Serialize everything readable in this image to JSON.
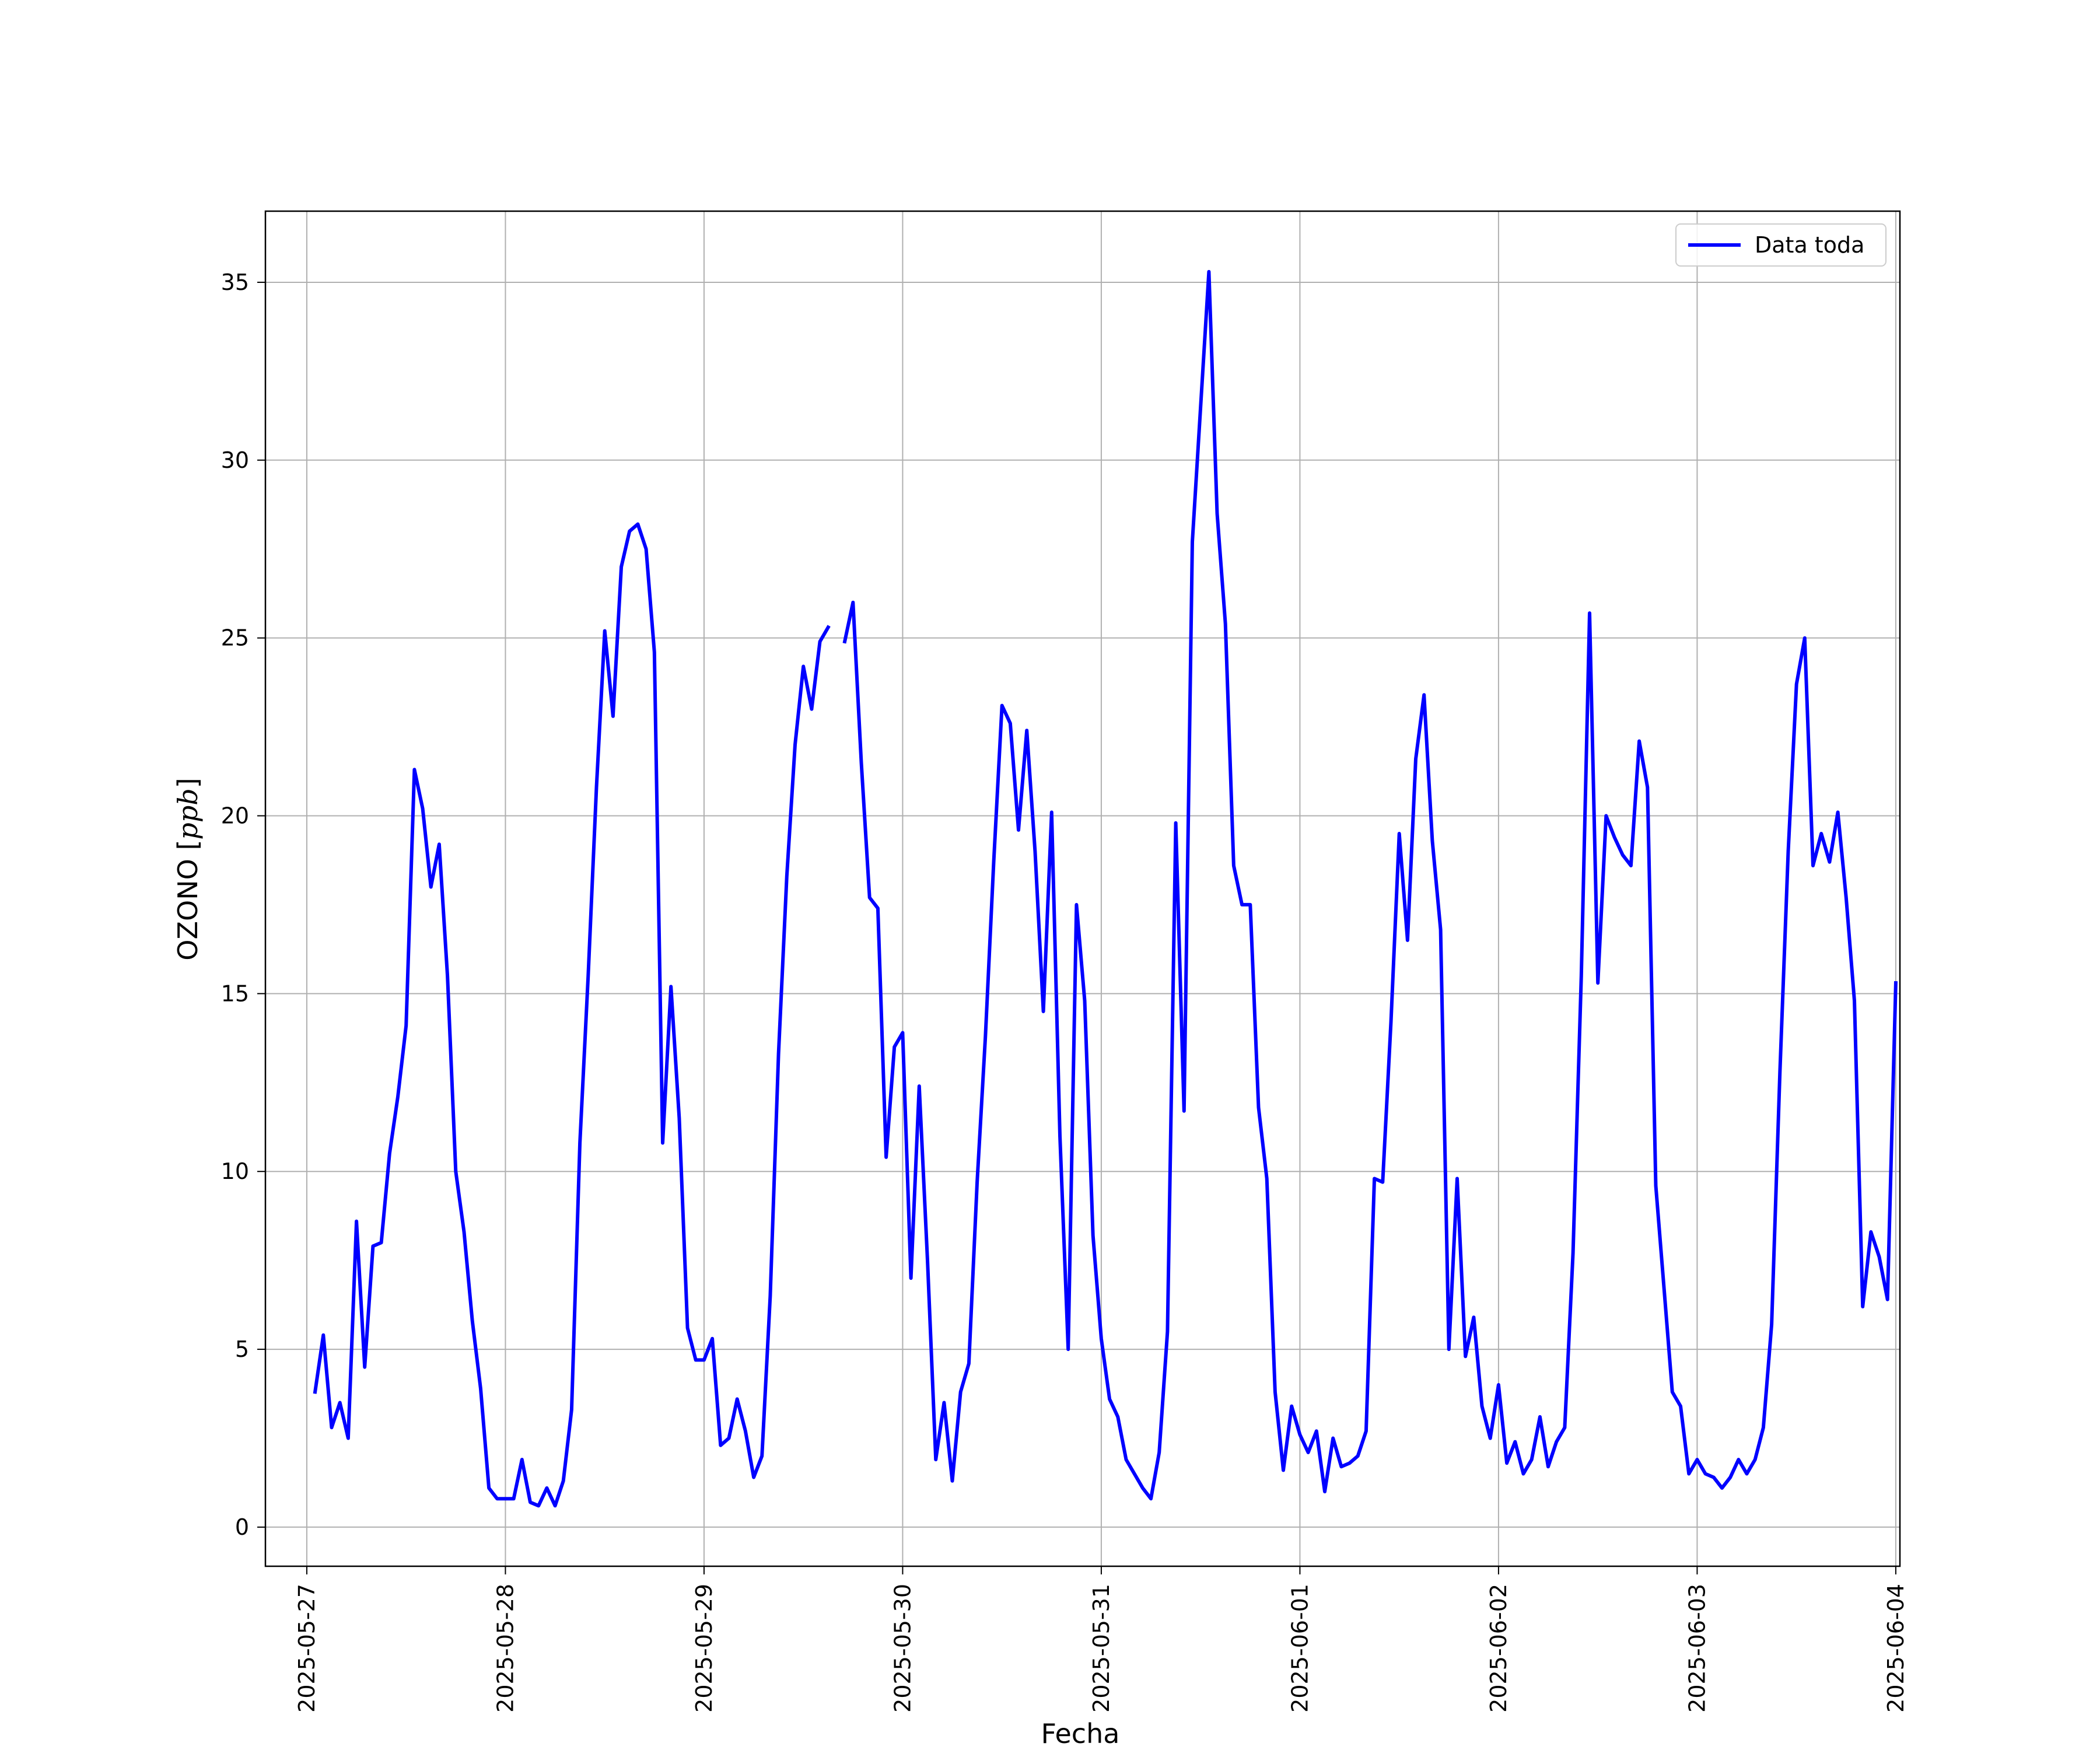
{
  "chart_data": {
    "type": "line",
    "title": "",
    "xlabel": "Fecha",
    "ylabel_prefix": "OZONO [",
    "ylabel_unit": "ppb",
    "ylabel_suffix": "]",
    "x_ticks": [
      "2025-05-27",
      "2025-05-28",
      "2025-05-29",
      "2025-05-30",
      "2025-05-31",
      "2025-06-01",
      "2025-06-02",
      "2025-06-03",
      "2025-06-04"
    ],
    "y_ticks": [
      "0",
      "5",
      "10",
      "15",
      "20",
      "25",
      "30",
      "35"
    ],
    "xlim": [
      "2025-05-26T19:00",
      "2025-06-04T00:30"
    ],
    "ylim": [
      -1.1,
      37.0
    ],
    "grid": true,
    "legend_position": "top-right",
    "series": [
      {
        "name": "Data toda",
        "color": "#0000ff",
        "points": [
          [
            "2025-05-27T01:00",
            3.8
          ],
          [
            "2025-05-27T02:00",
            5.4
          ],
          [
            "2025-05-27T03:00",
            2.8
          ],
          [
            "2025-05-27T04:00",
            3.5
          ],
          [
            "2025-05-27T05:00",
            2.5
          ],
          [
            "2025-05-27T06:00",
            8.6
          ],
          [
            "2025-05-27T07:00",
            4.5
          ],
          [
            "2025-05-27T08:00",
            7.9
          ],
          [
            "2025-05-27T09:00",
            8.0
          ],
          [
            "2025-05-27T10:00",
            10.5
          ],
          [
            "2025-05-27T11:00",
            12.1
          ],
          [
            "2025-05-27T12:00",
            14.1
          ],
          [
            "2025-05-27T13:00",
            21.3
          ],
          [
            "2025-05-27T14:00",
            20.2
          ],
          [
            "2025-05-27T15:00",
            18.0
          ],
          [
            "2025-05-27T16:00",
            19.2
          ],
          [
            "2025-05-27T17:00",
            15.5
          ],
          [
            "2025-05-27T18:00",
            10.0
          ],
          [
            "2025-05-27T19:00",
            8.3
          ],
          [
            "2025-05-27T20:00",
            5.8
          ],
          [
            "2025-05-27T21:00",
            3.9
          ],
          [
            "2025-05-27T22:00",
            1.1
          ],
          [
            "2025-05-27T23:00",
            0.8
          ],
          [
            "2025-05-28T00:00",
            0.8
          ],
          [
            "2025-05-28T01:00",
            0.8
          ],
          [
            "2025-05-28T02:00",
            1.9
          ],
          [
            "2025-05-28T03:00",
            0.7
          ],
          [
            "2025-05-28T04:00",
            0.6
          ],
          [
            "2025-05-28T05:00",
            1.1
          ],
          [
            "2025-05-28T06:00",
            0.6
          ],
          [
            "2025-05-28T07:00",
            1.3
          ],
          [
            "2025-05-28T08:00",
            3.3
          ],
          [
            "2025-05-28T09:00",
            10.8
          ],
          [
            "2025-05-28T10:00",
            15.5
          ],
          [
            "2025-05-28T11:00",
            20.8
          ],
          [
            "2025-05-28T12:00",
            25.2
          ],
          [
            "2025-05-28T13:00",
            22.8
          ],
          [
            "2025-05-28T14:00",
            27.0
          ],
          [
            "2025-05-28T15:00",
            28.0
          ],
          [
            "2025-05-28T16:00",
            28.2
          ],
          [
            "2025-05-28T17:00",
            27.5
          ],
          [
            "2025-05-28T18:00",
            24.6
          ],
          [
            "2025-05-28T19:00",
            10.8
          ],
          [
            "2025-05-28T20:00",
            15.2
          ],
          [
            "2025-05-28T21:00",
            11.5
          ],
          [
            "2025-05-28T22:00",
            5.6
          ],
          [
            "2025-05-28T23:00",
            4.7
          ],
          [
            "2025-05-29T00:00",
            4.7
          ],
          [
            "2025-05-29T01:00",
            5.3
          ],
          [
            "2025-05-29T02:00",
            2.3
          ],
          [
            "2025-05-29T03:00",
            2.5
          ],
          [
            "2025-05-29T04:00",
            3.6
          ],
          [
            "2025-05-29T05:00",
            2.7
          ],
          [
            "2025-05-29T06:00",
            1.4
          ],
          [
            "2025-05-29T07:00",
            2.0
          ],
          [
            "2025-05-29T08:00",
            6.5
          ],
          [
            "2025-05-29T09:00",
            13.3
          ],
          [
            "2025-05-29T10:00",
            18.3
          ],
          [
            "2025-05-29T11:00",
            22.0
          ],
          [
            "2025-05-29T12:00",
            24.2
          ],
          [
            "2025-05-29T13:00",
            23.0
          ],
          [
            "2025-05-29T14:00",
            24.9
          ],
          [
            "2025-05-29T15:00",
            25.3
          ],
          null,
          [
            "2025-05-29T17:00",
            24.9
          ],
          [
            "2025-05-29T18:00",
            26.0
          ],
          [
            "2025-05-29T19:00",
            21.5
          ],
          [
            "2025-05-29T20:00",
            17.7
          ],
          [
            "2025-05-29T21:00",
            17.4
          ],
          [
            "2025-05-29T22:00",
            10.4
          ],
          [
            "2025-05-29T23:00",
            13.5
          ],
          [
            "2025-05-30T00:00",
            13.9
          ],
          [
            "2025-05-30T01:00",
            7.0
          ],
          [
            "2025-05-30T02:00",
            12.4
          ],
          [
            "2025-05-30T03:00",
            7.5
          ],
          [
            "2025-05-30T04:00",
            1.9
          ],
          [
            "2025-05-30T05:00",
            3.5
          ],
          [
            "2025-05-30T06:00",
            1.3
          ],
          [
            "2025-05-30T07:00",
            3.8
          ],
          [
            "2025-05-30T08:00",
            4.6
          ],
          [
            "2025-05-30T09:00",
            9.7
          ],
          [
            "2025-05-30T10:00",
            13.8
          ],
          [
            "2025-05-30T11:00",
            18.7
          ],
          [
            "2025-05-30T12:00",
            23.1
          ],
          [
            "2025-05-30T13:00",
            22.6
          ],
          [
            "2025-05-30T14:00",
            19.6
          ],
          [
            "2025-05-30T15:00",
            22.4
          ],
          [
            "2025-05-30T16:00",
            19.0
          ],
          [
            "2025-05-30T17:00",
            14.5
          ],
          [
            "2025-05-30T18:00",
            20.1
          ],
          [
            "2025-05-30T19:00",
            11.0
          ],
          [
            "2025-05-30T20:00",
            5.0
          ],
          [
            "2025-05-30T21:00",
            17.5
          ],
          [
            "2025-05-30T22:00",
            14.8
          ],
          [
            "2025-05-30T23:00",
            8.2
          ],
          [
            "2025-05-31T00:00",
            5.3
          ],
          [
            "2025-05-31T01:00",
            3.6
          ],
          [
            "2025-05-31T02:00",
            3.1
          ],
          [
            "2025-05-31T03:00",
            1.9
          ],
          [
            "2025-05-31T04:00",
            1.5
          ],
          [
            "2025-05-31T05:00",
            1.1
          ],
          [
            "2025-05-31T06:00",
            0.8
          ],
          [
            "2025-05-31T07:00",
            2.1
          ],
          [
            "2025-05-31T08:00",
            5.5
          ],
          [
            "2025-05-31T09:00",
            19.8
          ],
          [
            "2025-05-31T10:00",
            11.7
          ],
          [
            "2025-05-31T11:00",
            27.7
          ],
          [
            "2025-05-31T12:00",
            31.5
          ],
          [
            "2025-05-31T13:00",
            35.3
          ],
          [
            "2025-05-31T14:00",
            28.5
          ],
          [
            "2025-05-31T15:00",
            25.4
          ],
          [
            "2025-05-31T16:00",
            18.6
          ],
          [
            "2025-05-31T17:00",
            17.5
          ],
          [
            "2025-05-31T18:00",
            17.5
          ],
          [
            "2025-05-31T19:00",
            11.8
          ],
          [
            "2025-05-31T20:00",
            9.8
          ],
          [
            "2025-05-31T21:00",
            3.8
          ],
          [
            "2025-05-31T22:00",
            1.6
          ],
          [
            "2025-05-31T23:00",
            3.4
          ],
          [
            "2025-06-01T00:00",
            2.6
          ],
          [
            "2025-06-01T01:00",
            2.1
          ],
          [
            "2025-06-01T02:00",
            2.7
          ],
          [
            "2025-06-01T03:00",
            1.0
          ],
          [
            "2025-06-01T04:00",
            2.5
          ],
          [
            "2025-06-01T05:00",
            1.7
          ],
          [
            "2025-06-01T06:00",
            1.8
          ],
          [
            "2025-06-01T07:00",
            2.0
          ],
          [
            "2025-06-01T08:00",
            2.7
          ],
          [
            "2025-06-01T09:00",
            9.8
          ],
          [
            "2025-06-01T10:00",
            9.7
          ],
          [
            "2025-06-01T11:00",
            14.2
          ],
          [
            "2025-06-01T12:00",
            19.5
          ],
          [
            "2025-06-01T13:00",
            16.5
          ],
          [
            "2025-06-01T14:00",
            21.6
          ],
          [
            "2025-06-01T15:00",
            23.4
          ],
          [
            "2025-06-01T16:00",
            19.3
          ],
          [
            "2025-06-01T17:00",
            16.8
          ],
          [
            "2025-06-01T18:00",
            5.0
          ],
          [
            "2025-06-01T19:00",
            9.8
          ],
          [
            "2025-06-01T20:00",
            4.8
          ],
          [
            "2025-06-01T21:00",
            5.9
          ],
          [
            "2025-06-01T22:00",
            3.4
          ],
          [
            "2025-06-01T23:00",
            2.5
          ],
          [
            "2025-06-02T00:00",
            4.0
          ],
          [
            "2025-06-02T01:00",
            1.8
          ],
          [
            "2025-06-02T02:00",
            2.4
          ],
          [
            "2025-06-02T03:00",
            1.5
          ],
          [
            "2025-06-02T04:00",
            1.9
          ],
          [
            "2025-06-02T05:00",
            3.1
          ],
          [
            "2025-06-02T06:00",
            1.7
          ],
          [
            "2025-06-02T07:00",
            2.4
          ],
          [
            "2025-06-02T08:00",
            2.8
          ],
          [
            "2025-06-02T09:00",
            7.7
          ],
          [
            "2025-06-02T10:00",
            15.5
          ],
          [
            "2025-06-02T11:00",
            25.7
          ],
          [
            "2025-06-02T12:00",
            15.3
          ],
          [
            "2025-06-02T13:00",
            20.0
          ],
          [
            "2025-06-02T14:00",
            19.4
          ],
          [
            "2025-06-02T15:00",
            18.9
          ],
          [
            "2025-06-02T16:00",
            18.6
          ],
          [
            "2025-06-02T17:00",
            22.1
          ],
          [
            "2025-06-02T18:00",
            20.8
          ],
          [
            "2025-06-02T19:00",
            9.6
          ],
          [
            "2025-06-02T20:00",
            6.7
          ],
          [
            "2025-06-02T21:00",
            3.8
          ],
          [
            "2025-06-02T22:00",
            3.4
          ],
          [
            "2025-06-02T23:00",
            1.5
          ],
          [
            "2025-06-03T00:00",
            1.9
          ],
          [
            "2025-06-03T01:00",
            1.5
          ],
          [
            "2025-06-03T02:00",
            1.4
          ],
          [
            "2025-06-03T03:00",
            1.1
          ],
          [
            "2025-06-03T04:00",
            1.4
          ],
          [
            "2025-06-03T05:00",
            1.9
          ],
          [
            "2025-06-03T06:00",
            1.5
          ],
          [
            "2025-06-03T07:00",
            1.9
          ],
          [
            "2025-06-03T08:00",
            2.8
          ],
          [
            "2025-06-03T09:00",
            5.7
          ],
          [
            "2025-06-03T10:00",
            12.8
          ],
          [
            "2025-06-03T11:00",
            19.0
          ],
          [
            "2025-06-03T12:00",
            23.7
          ],
          [
            "2025-06-03T13:00",
            25.0
          ],
          [
            "2025-06-03T14:00",
            18.6
          ],
          [
            "2025-06-03T15:00",
            19.5
          ],
          [
            "2025-06-03T16:00",
            18.7
          ],
          [
            "2025-06-03T17:00",
            20.1
          ],
          [
            "2025-06-03T18:00",
            17.7
          ],
          [
            "2025-06-03T19:00",
            14.8
          ],
          [
            "2025-06-03T20:00",
            6.2
          ],
          [
            "2025-06-03T21:00",
            8.3
          ],
          [
            "2025-06-03T22:00",
            7.6
          ],
          [
            "2025-06-03T23:00",
            6.4
          ],
          [
            "2025-06-04T00:00",
            15.3
          ]
        ]
      }
    ]
  }
}
